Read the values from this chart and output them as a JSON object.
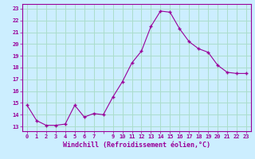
{
  "x": [
    0,
    1,
    2,
    3,
    4,
    5,
    6,
    7,
    8,
    9,
    10,
    11,
    12,
    13,
    14,
    15,
    16,
    17,
    18,
    19,
    20,
    21,
    22,
    23
  ],
  "y": [
    14.8,
    13.5,
    13.1,
    13.1,
    13.2,
    14.8,
    13.8,
    14.1,
    14.0,
    15.5,
    16.8,
    18.4,
    19.4,
    21.5,
    22.8,
    22.7,
    21.3,
    20.2,
    19.6,
    19.3,
    18.2,
    17.6,
    17.5,
    17.5
  ],
  "xtick_labels": [
    "0",
    "1",
    "2",
    "3",
    "4",
    "5",
    "6",
    "7",
    "",
    "9",
    "10",
    "11",
    "12",
    "13",
    "14",
    "15",
    "16",
    "17",
    "18",
    "19",
    "20",
    "21",
    "22",
    "23"
  ],
  "ytick_labels": [
    "13",
    "14",
    "15",
    "16",
    "17",
    "18",
    "19",
    "20",
    "21",
    "22",
    "23"
  ],
  "yticks": [
    13,
    14,
    15,
    16,
    17,
    18,
    19,
    20,
    21,
    22,
    23
  ],
  "ylim": [
    12.6,
    23.4
  ],
  "xlim": [
    -0.5,
    23.5
  ],
  "xlabel": "Windchill (Refroidissement éolien,°C)",
  "line_color": "#990099",
  "marker_color": "#990099",
  "bg_color": "#cceeff",
  "grid_color": "#aaddcc",
  "spine_color": "#990099",
  "tick_label_color": "#990099",
  "xlabel_color": "#990099"
}
